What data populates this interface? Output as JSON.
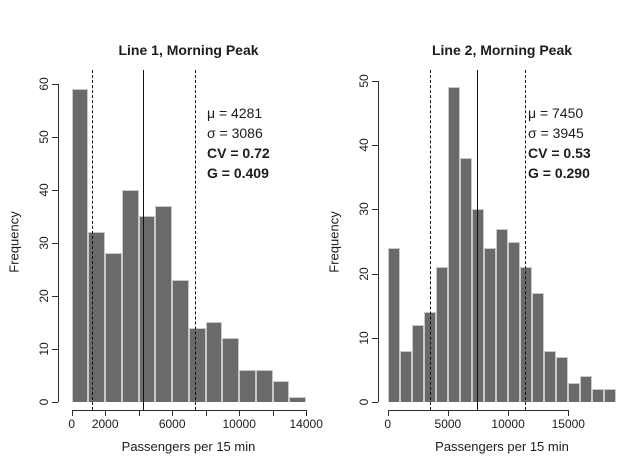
{
  "colors": {
    "background": "#ffffff",
    "bar_fill": "#6a6a6a",
    "bar_border": "#c9c9c9",
    "axis": "#2b2b2b",
    "reference_line": "#111111"
  },
  "chart_data": [
    {
      "type": "bar",
      "chart_kind": "histogram",
      "title": "Line 1, Morning Peak",
      "xlabel": "Passengers per 15 min",
      "ylabel": "Frequency",
      "bin_start": 0,
      "bin_width": 1000,
      "frequencies": [
        59,
        32,
        28,
        40,
        35,
        37,
        23,
        14,
        15,
        12,
        6,
        6,
        4,
        1
      ],
      "xlim": [
        0,
        14000
      ],
      "ylim": [
        0,
        60
      ],
      "x_ticks": [
        {
          "value": 0,
          "label": "0"
        },
        {
          "value": 2000,
          "label": "2000"
        },
        {
          "value": 4000,
          "label": ""
        },
        {
          "value": 6000,
          "label": "6000"
        },
        {
          "value": 8000,
          "label": ""
        },
        {
          "value": 10000,
          "label": "10000"
        },
        {
          "value": 12000,
          "label": ""
        },
        {
          "value": 14000,
          "label": "14000"
        }
      ],
      "y_ticks": [
        0,
        10,
        20,
        30,
        40,
        50,
        60
      ],
      "grid": false,
      "mean": 4281,
      "sd": 3086,
      "mean_line_style": "solid",
      "sd_line_style": "dashed",
      "stats_lines": [
        "μ = 4281",
        "σ = 3086",
        "CV = 0.72",
        "G = 0.409"
      ]
    },
    {
      "type": "bar",
      "chart_kind": "histogram",
      "title": "Line 2, Morning Peak",
      "xlabel": "Passengers per 15 min",
      "ylabel": "Frequency",
      "bin_start": 0,
      "bin_width": 1000,
      "frequencies": [
        24,
        8,
        12,
        14,
        21,
        49,
        38,
        30,
        24,
        27,
        25,
        21,
        17,
        8,
        7,
        3,
        4,
        2,
        2
      ],
      "xlim": [
        0,
        19000
      ],
      "ylim": [
        0,
        50
      ],
      "x_ticks": [
        {
          "value": 0,
          "label": "0"
        },
        {
          "value": 5000,
          "label": "5000"
        },
        {
          "value": 10000,
          "label": "10000"
        },
        {
          "value": 15000,
          "label": "15000"
        }
      ],
      "y_ticks": [
        0,
        10,
        20,
        30,
        40,
        50
      ],
      "grid": false,
      "mean": 7450,
      "sd": 3945,
      "mean_line_style": "solid",
      "sd_line_style": "dashed",
      "stats_lines": [
        "μ = 7450",
        "σ = 3945",
        "CV = 0.53",
        "G = 0.290"
      ]
    }
  ]
}
